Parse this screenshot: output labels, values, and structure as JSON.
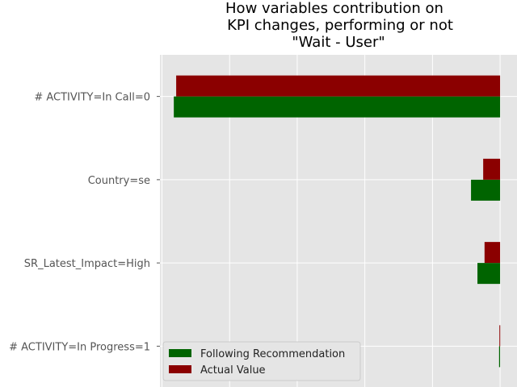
{
  "chart_data": {
    "type": "bar",
    "orientation": "horizontal",
    "title_lines": [
      "How variables contribution on",
      "KPI changes, performing or not",
      "\"Wait - User\""
    ],
    "xlabel": "",
    "ylabel": "",
    "categories": [
      "# ACTIVITY=In Call=0",
      "Country=se",
      "SR_Latest_Impact=High",
      "# ACTIVITY=In Progress=1"
    ],
    "series": [
      {
        "name": "Following Recommendation",
        "color": "#006400",
        "values": [
          -0.4825,
          -0.043,
          -0.0335,
          -0.0015
        ]
      },
      {
        "name": "Actual Value",
        "color": "#8b0000",
        "values": [
          -0.479,
          -0.025,
          -0.023,
          -0.001
        ]
      }
    ],
    "xlim": [
      -0.503,
      0.025
    ],
    "xgrid_values": [
      -0.5,
      -0.4,
      -0.3,
      -0.2,
      -0.1,
      0.0
    ],
    "grid": true,
    "legend_position": "lower-left",
    "background": "#e5e5e5",
    "grid_color": "#ffffff",
    "tick_color": "#555555"
  }
}
